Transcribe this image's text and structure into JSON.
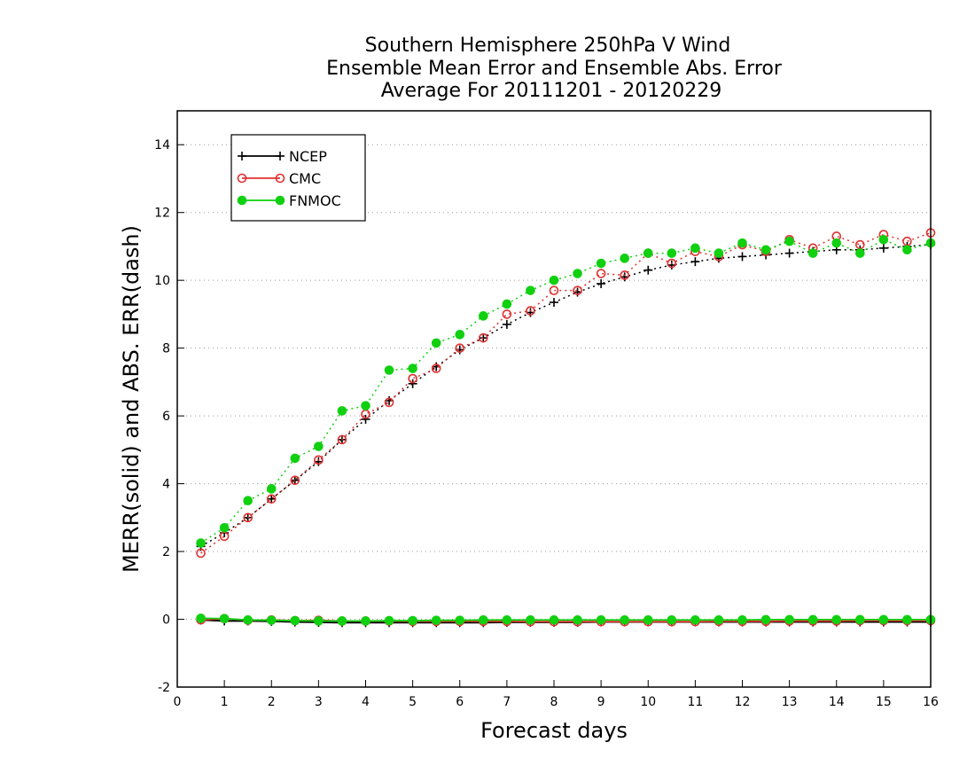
{
  "chart_data": {
    "type": "line",
    "title_lines": [
      "Southern Hemisphere 250hPa V Wind",
      "Ensemble Mean Error and Ensemble Abs. Error",
      "Average For 20111201 - 20120229"
    ],
    "xlabel": "Forecast days",
    "ylabel": "MERR(solid) and ABS. ERR(dash)",
    "xlim": [
      0,
      16
    ],
    "ylim": [
      -2,
      15
    ],
    "xticks": [
      "0",
      "1",
      "2",
      "3",
      "4",
      "5",
      "6",
      "7",
      "8",
      "9",
      "10",
      "11",
      "12",
      "13",
      "14",
      "15",
      "16"
    ],
    "yticks": [
      "-2",
      "0",
      "2",
      "4",
      "6",
      "8",
      "10",
      "12",
      "14"
    ],
    "grid": "horizontal dotted",
    "legend_position": "top-left",
    "x": [
      0.5,
      1,
      1.5,
      2,
      2.5,
      3,
      3.5,
      4,
      4.5,
      5,
      5.5,
      6,
      6.5,
      7,
      7.5,
      8,
      8.5,
      9,
      9.5,
      10,
      10.5,
      11,
      11.5,
      12,
      12.5,
      13,
      13.5,
      14,
      14.5,
      15,
      15.5,
      16
    ],
    "series": [
      {
        "name": "NCEP",
        "color": "#000000",
        "marker": "plus",
        "merr": [
          -0.02,
          -0.05,
          -0.05,
          -0.06,
          -0.08,
          -0.09,
          -0.1,
          -0.1,
          -0.1,
          -0.1,
          -0.1,
          -0.1,
          -0.1,
          -0.09,
          -0.09,
          -0.09,
          -0.09,
          -0.08,
          -0.08,
          -0.08,
          -0.08,
          -0.08,
          -0.08,
          -0.08,
          -0.08,
          -0.08,
          -0.08,
          -0.08,
          -0.08,
          -0.08,
          -0.08,
          -0.08
        ],
        "abs_err": [
          2.15,
          2.55,
          3.0,
          3.55,
          4.1,
          4.65,
          5.3,
          5.9,
          6.45,
          6.95,
          7.45,
          7.95,
          8.3,
          8.7,
          9.05,
          9.35,
          9.65,
          9.9,
          10.1,
          10.3,
          10.45,
          10.55,
          10.65,
          10.7,
          10.75,
          10.8,
          10.85,
          10.9,
          10.9,
          10.95,
          11.0,
          11.05
        ]
      },
      {
        "name": "CMC",
        "color": "#e03030",
        "marker": "open-circle",
        "merr": [
          -0.02,
          0.02,
          -0.03,
          -0.02,
          -0.04,
          -0.03,
          -0.05,
          -0.05,
          -0.05,
          -0.06,
          -0.06,
          -0.06,
          -0.06,
          -0.06,
          -0.07,
          -0.07,
          -0.07,
          -0.07,
          -0.07,
          -0.07,
          -0.07,
          -0.07,
          -0.06,
          -0.06,
          -0.06,
          -0.05,
          -0.05,
          -0.05,
          -0.04,
          -0.04,
          -0.04,
          -0.04
        ],
        "abs_err": [
          1.95,
          2.45,
          3.0,
          3.55,
          4.1,
          4.7,
          5.3,
          6.05,
          6.4,
          7.1,
          7.4,
          8.0,
          8.3,
          9.0,
          9.1,
          9.7,
          9.7,
          10.2,
          10.15,
          10.8,
          10.5,
          10.85,
          10.7,
          11.05,
          10.85,
          11.2,
          10.95,
          11.3,
          11.05,
          11.35,
          11.15,
          11.4
        ]
      },
      {
        "name": "FNMOC",
        "color": "#10d010",
        "marker": "filled-circle",
        "merr": [
          0.03,
          0.02,
          -0.02,
          -0.03,
          -0.04,
          -0.05,
          -0.05,
          -0.05,
          -0.04,
          -0.04,
          -0.03,
          -0.03,
          -0.02,
          -0.02,
          -0.02,
          -0.02,
          -0.02,
          -0.02,
          -0.02,
          -0.02,
          -0.02,
          -0.02,
          -0.02,
          -0.02,
          -0.01,
          -0.01,
          -0.01,
          -0.01,
          -0.01,
          -0.01,
          -0.01,
          -0.01
        ],
        "abs_err": [
          2.25,
          2.7,
          3.5,
          3.85,
          4.75,
          5.1,
          6.15,
          6.3,
          7.35,
          7.4,
          8.15,
          8.4,
          8.95,
          9.3,
          9.7,
          10.0,
          10.2,
          10.5,
          10.65,
          10.8,
          10.8,
          10.95,
          10.8,
          11.1,
          10.9,
          11.15,
          10.8,
          11.1,
          10.8,
          11.2,
          10.9,
          11.1
        ]
      }
    ]
  }
}
